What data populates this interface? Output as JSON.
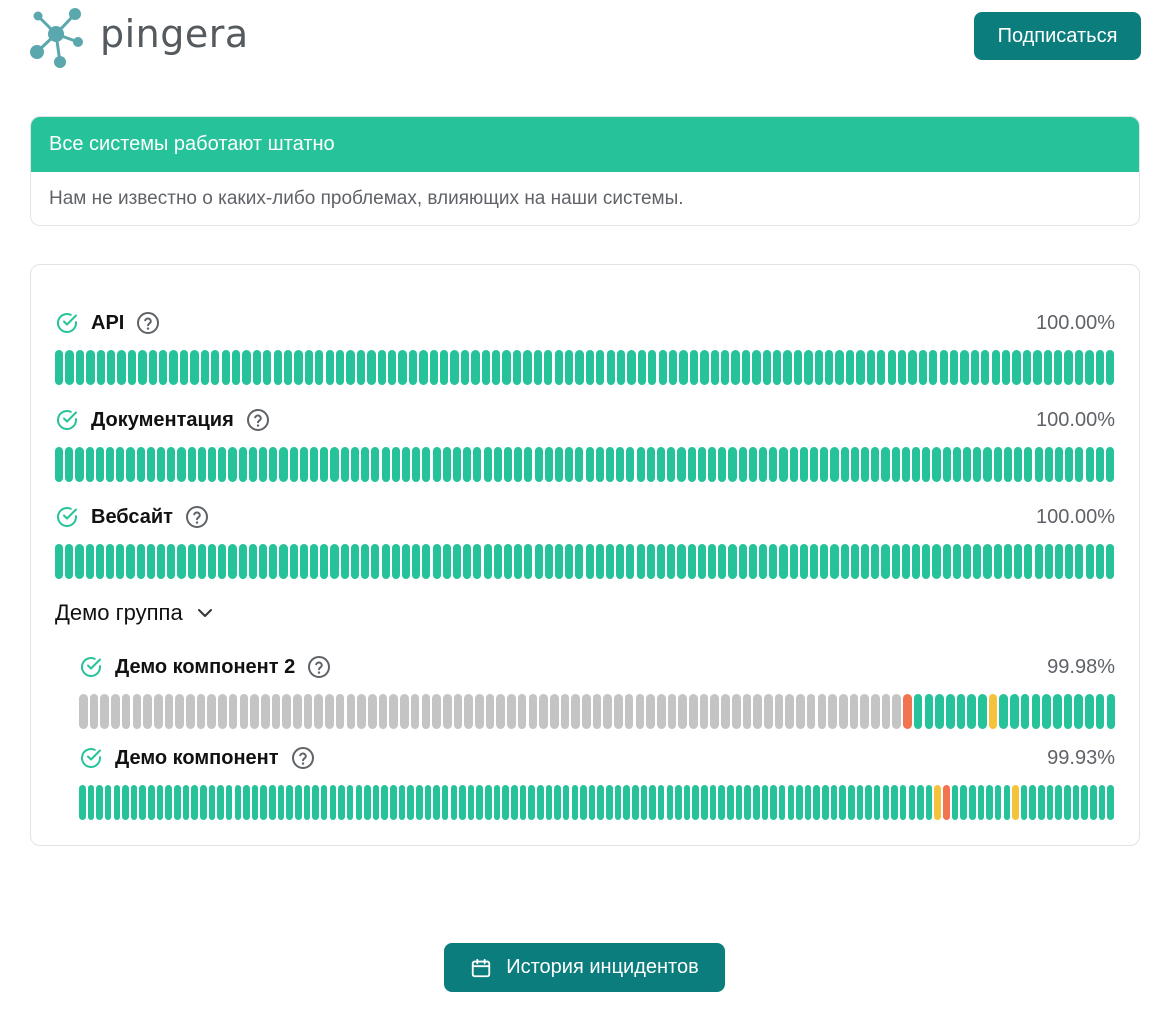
{
  "header": {
    "logo_text": "pingera",
    "subscribe_label": "Подписаться"
  },
  "status": {
    "title": "Все системы работают штатно",
    "message": "Нам не известно о каких-либо проблемах, влияющих на наши системы."
  },
  "colors": {
    "ok": "#26c299",
    "warning": "#f5c33b",
    "outage": "#f2734f",
    "no_data": "#c4c4c4",
    "accent": "#0b7d7d"
  },
  "components": [
    {
      "name": "API",
      "uptime": "100.00%",
      "status_icon": "check-circle-icon",
      "bars": "gggggggggggggggggggggggggggggggggggggggggggggggggggggggggggggggggggggggggggggggggggggggggggggggggggggg"
    },
    {
      "name": "Документация",
      "uptime": "100.00%",
      "status_icon": "check-circle-icon",
      "bars": "gggggggggggggggggggggggggggggggggggggggggggggggggggggggggggggggggggggggggggggggggggggggggggggggggggggggg"
    },
    {
      "name": "Вебсайт",
      "uptime": "100.00%",
      "status_icon": "check-circle-icon",
      "bars": "gggggggggggggggggggggggggggggggggggggggggggggggggggggggggggggggggggggggggggggggggggggggggggggggggggggggg"
    }
  ],
  "group": {
    "name": "Демо группа",
    "expand_icon": "chevron-down-icon",
    "components": [
      {
        "name": "Демо компонент 2",
        "uptime": "99.98%",
        "status_icon": "check-circle-icon",
        "bars": "nnnnnnnnnnnnnnnnnnnnnnnnnnnnnnnnnnnnnnnnnnnnnnnnnnnnnnnnnnnnnnnnnnnnnnnnnnnnnrgggggggyggggggggggg"
      },
      {
        "name": "Демо компонент",
        "uptime": "99.93%",
        "status_icon": "check-circle-icon",
        "bars": "gggggggggggggggggggggggggggggggggggggggggggggggggggggggggggggggggggggggggggggggggggggggggggggggggggyrgggggggyggggggggggg"
      }
    ]
  },
  "footer": {
    "history_label": "История инцидентов",
    "history_icon": "calendar-icon"
  }
}
